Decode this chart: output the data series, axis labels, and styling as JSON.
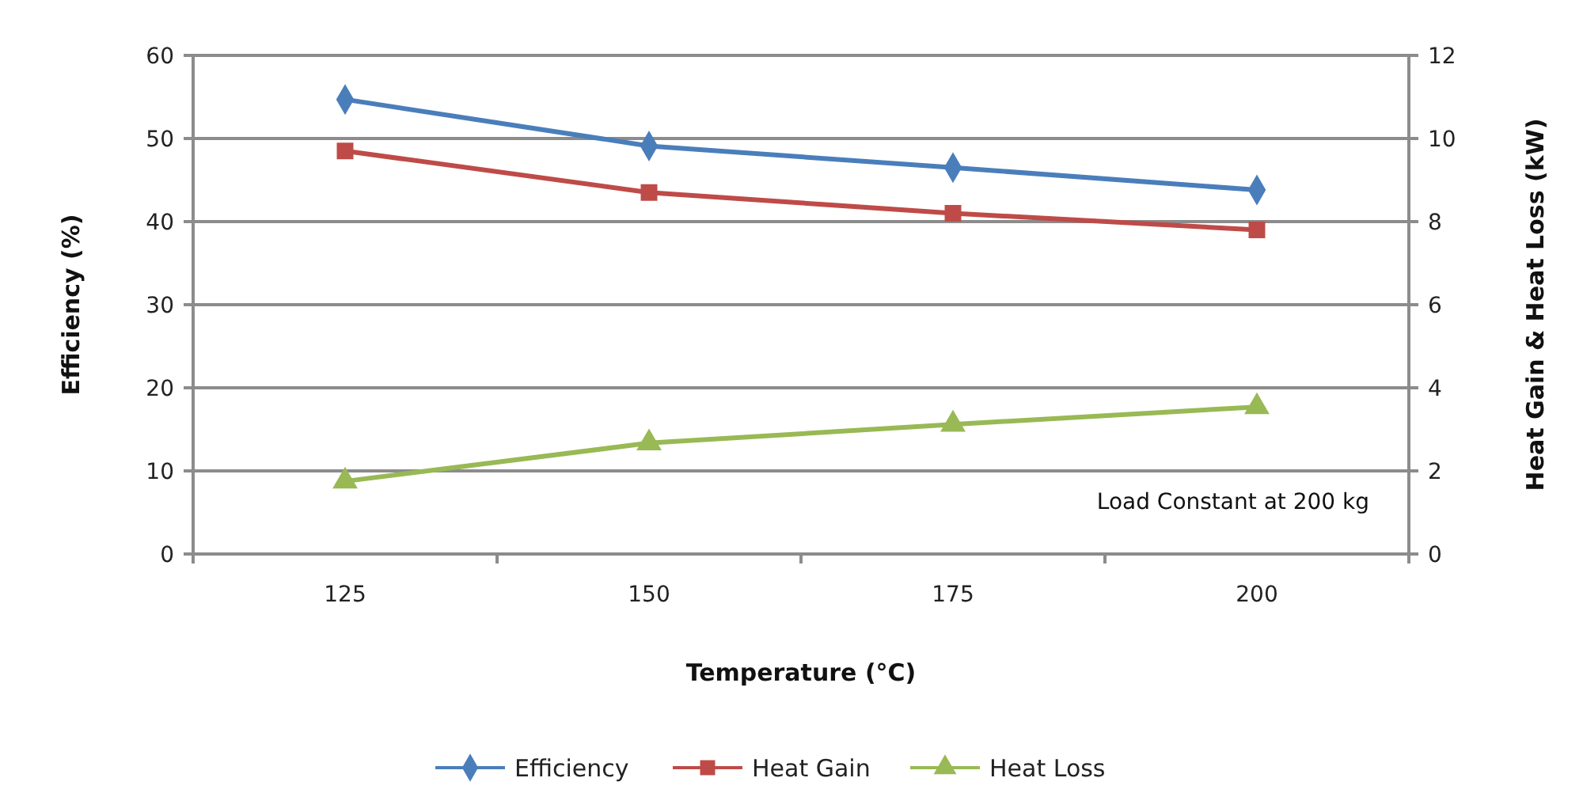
{
  "chart_data": {
    "type": "line",
    "xlabel": "Temperature (°C)",
    "ylabel": "Efficiency (%)",
    "y2label": "Heat Gain  & Heat Loss (kW)",
    "categories": [
      "125",
      "150",
      "175",
      "200"
    ],
    "series": [
      {
        "name": "Efficiency",
        "color": "#4a7ebb",
        "values": [
          54.7,
          49.1,
          46.5,
          43.8
        ],
        "marker": "diamond"
      },
      {
        "name": "Heat Gain",
        "color": "#be4b48",
        "values": [
          9.7,
          8.7,
          8.2,
          7.8
        ],
        "marker": "square",
        "axis": "y2"
      },
      {
        "name": "Heat Loss",
        "color": "#98b954",
        "values": [
          1.75,
          2.67,
          3.12,
          3.54
        ],
        "marker": "triangle",
        "axis": "y2"
      }
    ],
    "ylim": [
      0,
      60
    ],
    "yticks": [
      0,
      10,
      20,
      30,
      40,
      50,
      60
    ],
    "y2lim": [
      0,
      12
    ],
    "y2ticks": [
      0,
      2,
      4,
      6,
      8,
      10,
      12
    ],
    "grid": "y",
    "legend": "bottom",
    "annotations": [
      "Load Constant at 200 kg"
    ]
  }
}
